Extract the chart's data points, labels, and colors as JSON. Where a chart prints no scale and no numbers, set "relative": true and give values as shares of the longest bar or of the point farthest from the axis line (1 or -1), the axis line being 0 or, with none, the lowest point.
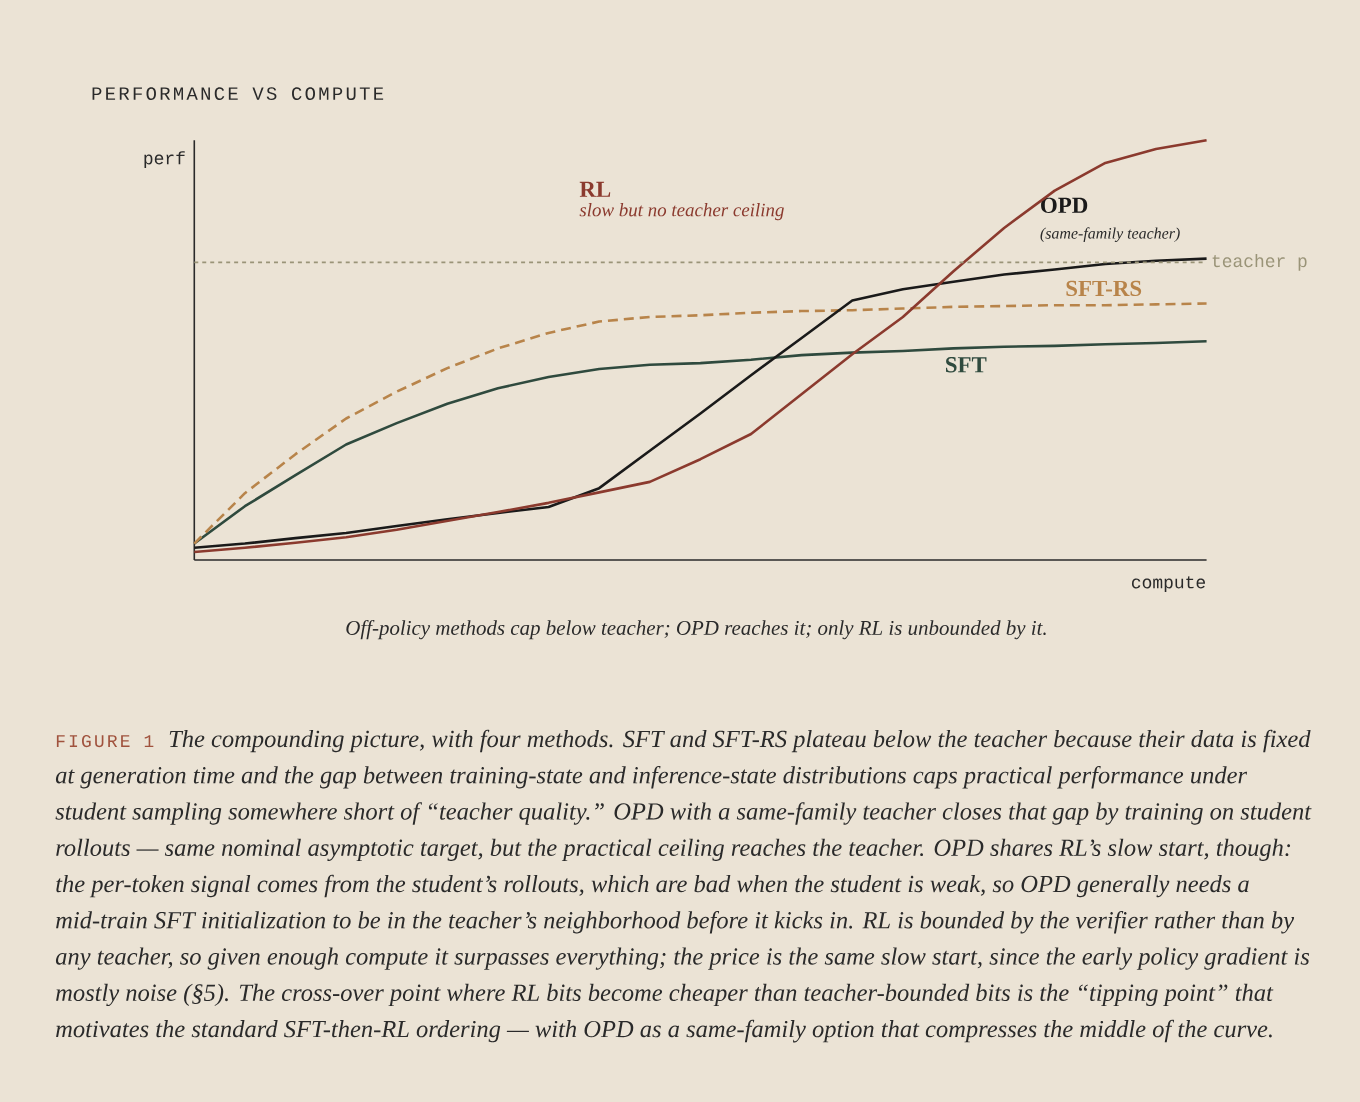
{
  "chart_data": {
    "type": "line",
    "title": "PERFORMANCE VS COMPUTE",
    "xlabel": "compute",
    "ylabel": "perf",
    "relative": true,
    "marker": "none",
    "line_style": "solid",
    "categories": [
      null,
      null,
      null,
      null,
      null,
      null,
      null,
      null,
      null,
      null,
      null,
      null,
      null,
      null,
      null,
      null,
      null,
      null,
      null,
      null,
      null
    ],
    "series": [
      {
        "name": "SFT",
        "color": "#2f4a3e",
        "values": [
          0.039,
          0.128,
          0.202,
          0.275,
          0.326,
          0.372,
          0.409,
          0.436,
          0.455,
          0.465,
          0.469,
          0.477,
          0.488,
          0.494,
          0.498,
          0.504,
          0.508,
          0.51,
          0.514,
          0.517,
          0.521
        ]
      },
      {
        "name": "SFT-RS",
        "color": "#b8844a",
        "line_style": "dashed",
        "values": [
          0.039,
          0.159,
          0.252,
          0.337,
          0.401,
          0.457,
          0.504,
          0.541,
          0.568,
          0.579,
          0.583,
          0.589,
          0.593,
          0.595,
          0.599,
          0.603,
          0.605,
          0.607,
          0.607,
          0.609,
          0.611
        ]
      },
      {
        "name": "OPD",
        "color": "#1a1a1a",
        "values": [
          0.029,
          0.039,
          0.052,
          0.064,
          0.081,
          0.097,
          0.112,
          0.126,
          0.171,
          0.26,
          0.349,
          0.44,
          0.529,
          0.618,
          0.645,
          0.663,
          0.68,
          0.692,
          0.705,
          0.713,
          0.718
        ]
      },
      {
        "name": "RL",
        "color": "#8b3a2e",
        "values": [
          0.019,
          0.029,
          0.041,
          0.054,
          0.072,
          0.093,
          0.114,
          0.136,
          0.161,
          0.186,
          0.24,
          0.3,
          0.395,
          0.49,
          0.579,
          0.688,
          0.791,
          0.88,
          0.946,
          0.979,
          1
        ]
      }
    ],
    "ref_lines": [
      {
        "axis": "y",
        "value": 0.709,
        "label": "teacher p",
        "color": "#9a9478",
        "line_style": "dashed"
      }
    ],
    "annotations": [
      "slow but no teacher ceiling",
      "(same-family teacher)",
      "Off-policy methods cap below teacher; OPD reaches it; only RL is unbounded by it.",
      "FIGURE 1",
      "The compounding picture, with four methods. SFT and SFT-RS plateau below the teacher because their data is fixed at generation time and the gap between training-state and inference-state distributions caps practical performance under student sampling somewhere short of “teacher quality.” OPD with a same-family teacher closes that gap by training on student rollouts — same nominal asymptotic target, but the practical ceiling reaches the teacher. OPD shares RL’s slow start, though: the per-token signal comes from the student’s rollouts, which are bad when the student is weak, so OPD generally needs a mid-train SFT initialization to be in the teacher’s neighborhood before it kicks in. RL is bounded by the verifier rather than by any teacher, so given enough compute it surpasses everything; the price is the same slow start, since the early policy gradient is mostly noise (§5). The cross-over point where RL bits become cheaper than teacher-bounded bits is the “tipping point” that motivates the standard SFT-then-RL ordering — with OPD as a same-family option that compresses the middle of the curve."
    ]
  }
}
